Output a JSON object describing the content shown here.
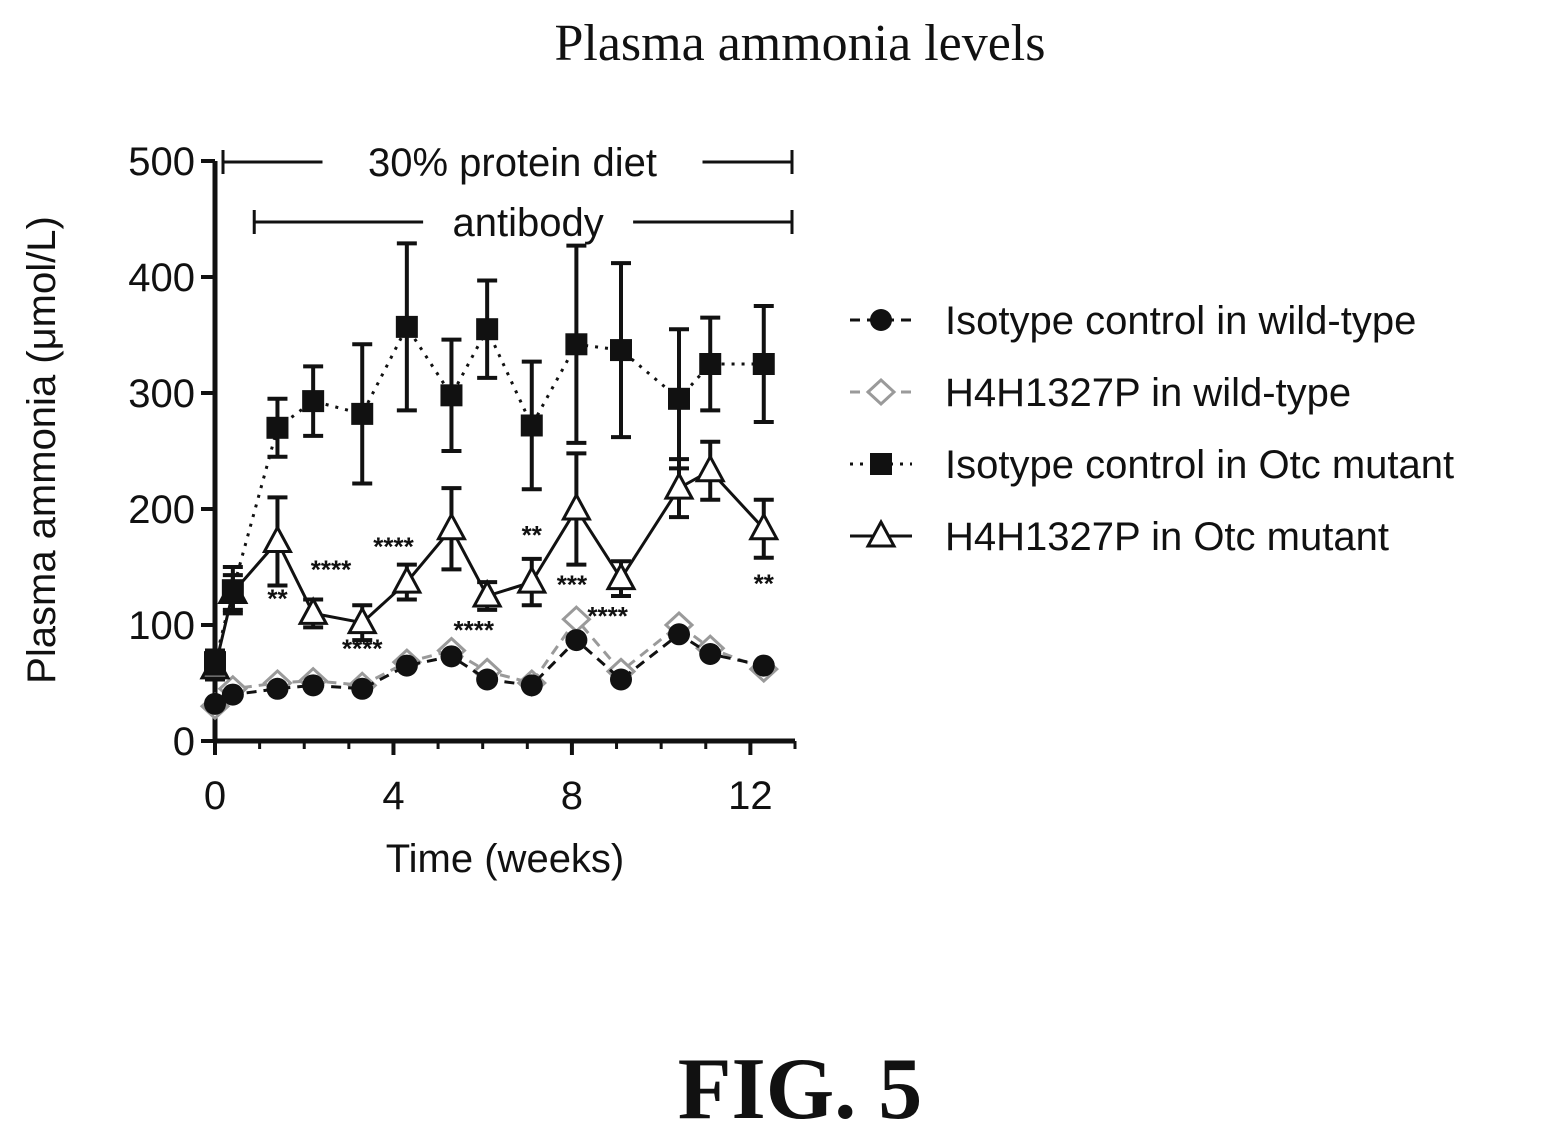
{
  "figure": {
    "title": "Plasma ammonia levels",
    "label": "FIG. 5"
  },
  "annotations": {
    "diet": "30% protein diet",
    "antibody": "antibody"
  },
  "colors": {
    "ink": "#111111",
    "wt_hollow": "#9a9a9a"
  },
  "chart_data": {
    "type": "line",
    "xlabel": "Time (weeks)",
    "ylabel": "Plasma ammonia (μmol/L)",
    "xlim": [
      0,
      13
    ],
    "ylim": [
      0,
      500
    ],
    "xticks": [
      "0",
      "4",
      "8",
      "12"
    ],
    "xtick_values": [
      0,
      4,
      8,
      12
    ],
    "yticks": [
      "0",
      "100",
      "200",
      "300",
      "400",
      "500"
    ],
    "ytick_values": [
      0,
      100,
      200,
      300,
      400,
      500
    ],
    "diet_range": [
      0,
      13
    ],
    "antibody_range": [
      0.7,
      13
    ],
    "legend_position": "right",
    "series": [
      {
        "name": "Isotype control in wild-type",
        "marker": "filled-circle",
        "line": "dashed",
        "x": [
          0,
          0.4,
          1.4,
          2.2,
          3.3,
          4.3,
          5.3,
          6.1,
          7.1,
          8.1,
          9.1,
          10.4,
          11.1,
          12.3
        ],
        "y": [
          32,
          40,
          45,
          48,
          45,
          65,
          73,
          53,
          48,
          87,
          53,
          92,
          75,
          65
        ]
      },
      {
        "name": "H4H1327P in wild-type",
        "marker": "hollow-diamond",
        "line": "dashed",
        "x": [
          0,
          0.4,
          1.4,
          2.2,
          3.3,
          4.3,
          5.3,
          6.1,
          7.1,
          8.1,
          9.1,
          10.4,
          11.1,
          12.3
        ],
        "y": [
          30,
          45,
          50,
          52,
          48,
          68,
          78,
          60,
          50,
          105,
          60,
          100,
          80,
          62
        ]
      },
      {
        "name": "Isotype control in Otc mutant",
        "marker": "filled-square",
        "line": "dotted",
        "x": [
          0,
          0.4,
          1.4,
          2.2,
          3.3,
          4.3,
          5.3,
          6.1,
          7.1,
          8.1,
          9.1,
          10.4,
          11.1,
          12.3
        ],
        "y": [
          68,
          130,
          270,
          293,
          282,
          357,
          298,
          355,
          272,
          342,
          337,
          295,
          325,
          325
        ],
        "err": [
          10,
          20,
          25,
          30,
          60,
          72,
          48,
          42,
          55,
          85,
          75,
          60,
          40,
          50
        ]
      },
      {
        "name": "H4H1327P in Otc mutant",
        "marker": "hollow-triangle",
        "line": "solid",
        "x": [
          0,
          0.4,
          1.4,
          2.2,
          3.3,
          4.3,
          5.3,
          6.1,
          7.1,
          8.1,
          9.1,
          10.4,
          11.1,
          12.3
        ],
        "y": [
          63,
          128,
          172,
          110,
          102,
          137,
          183,
          125,
          137,
          200,
          140,
          218,
          233,
          183
        ],
        "err": [
          10,
          15,
          38,
          12,
          15,
          15,
          35,
          12,
          20,
          48,
          15,
          25,
          25,
          25
        ]
      }
    ],
    "significance": [
      {
        "x": 1.4,
        "y": 115,
        "text": "**"
      },
      {
        "x": 2.6,
        "y": 140,
        "text": "****"
      },
      {
        "x": 3.3,
        "y": 72,
        "text": "****"
      },
      {
        "x": 4.0,
        "y": 160,
        "text": "****"
      },
      {
        "x": 5.8,
        "y": 88,
        "text": "****"
      },
      {
        "x": 7.1,
        "y": 170,
        "text": "**"
      },
      {
        "x": 8.0,
        "y": 127,
        "text": "***"
      },
      {
        "x": 8.8,
        "y": 100,
        "text": "****"
      },
      {
        "x": 12.3,
        "y": 128,
        "text": "**"
      }
    ]
  }
}
